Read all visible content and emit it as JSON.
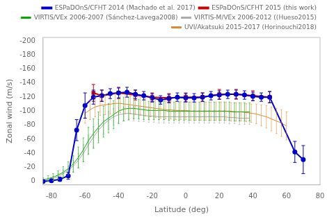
{
  "chart_data": {
    "type": "line",
    "xlabel": "Latitude (deg)",
    "ylabel": "Zonal wind (m/s)",
    "xlim": [
      -85,
      80
    ],
    "ylim": [
      5,
      -205
    ],
    "xticks": [
      -80,
      -60,
      -40,
      -20,
      0,
      20,
      40,
      60,
      80
    ],
    "yticks": [
      -200,
      -180,
      -160,
      -140,
      -120,
      -100,
      -80,
      -60,
      -40,
      -20,
      0
    ],
    "grid": false,
    "legend": "upper right",
    "series": [
      {
        "name": "ESPaDOnS/CFHT 2014 (Machado et al. 2017)",
        "color": "#0000cc",
        "marker": "circle",
        "line_style": "solid",
        "x": [
          -85,
          -80,
          -75,
          -70,
          -65,
          -60,
          -55,
          -50,
          -45,
          -40,
          -35,
          -30,
          -25,
          -20,
          -15,
          -10,
          -5,
          0,
          5,
          10,
          15,
          20,
          25,
          30,
          35,
          40,
          45,
          50,
          65,
          70
        ],
        "values": [
          0,
          -1,
          -3,
          -8,
          -73,
          -108,
          -120,
          -122,
          -125,
          -126,
          -127,
          -124,
          -122,
          -119,
          -116,
          -118,
          -120,
          -119,
          -119,
          -120,
          -122,
          -123,
          -124,
          -124,
          -123,
          -121,
          -120,
          -120,
          -42,
          -31
        ],
        "yerr_low": [
          2,
          2,
          3,
          5,
          15,
          18,
          10,
          8,
          7,
          7,
          7,
          6,
          6,
          6,
          6,
          6,
          6,
          6,
          6,
          6,
          6,
          6,
          6,
          6,
          6,
          6,
          6,
          8,
          15,
          20
        ],
        "yerr_high": [
          2,
          2,
          3,
          5,
          15,
          18,
          10,
          8,
          7,
          7,
          7,
          6,
          6,
          6,
          6,
          6,
          6,
          6,
          6,
          6,
          6,
          6,
          6,
          6,
          6,
          6,
          6,
          8,
          15,
          20
        ]
      },
      {
        "name": "ESPaDOnS/CFHT 2015 (this work)",
        "color": "#cc0000",
        "marker": "square",
        "line_style": "solid",
        "x": [
          -55,
          -50,
          -40,
          -30,
          -20,
          -10,
          0,
          10,
          20,
          30,
          40,
          50
        ],
        "values": [
          -126,
          -122,
          -126,
          -123,
          -120,
          -119,
          -120,
          -120,
          -124,
          -124,
          -122,
          -120
        ],
        "yerr_low": [
          12,
          8,
          8,
          7,
          6,
          6,
          6,
          6,
          7,
          7,
          7,
          8
        ],
        "yerr_high": [
          12,
          8,
          8,
          7,
          6,
          6,
          6,
          6,
          7,
          7,
          7,
          8
        ]
      },
      {
        "name": "VIRTIS/VEx 2006-2007 (Sánchez-Lavega2008)",
        "color": "#00aa00",
        "marker": "none",
        "line_style": "solid",
        "x": [
          -85,
          -82,
          -79,
          -76,
          -73,
          -70,
          -67,
          -64,
          -61,
          -58,
          -55,
          -52,
          -49,
          -46,
          -43,
          -40,
          -37,
          -34,
          -31,
          -28,
          -25,
          -22,
          -19,
          -16,
          -13,
          -10,
          -7,
          -4,
          -1,
          2,
          5,
          8,
          11,
          14,
          17,
          20,
          23,
          26,
          29,
          32,
          35,
          38
        ],
        "values": [
          -2,
          -4,
          -6,
          -9,
          -13,
          -18,
          -25,
          -34,
          -45,
          -58,
          -68,
          -77,
          -85,
          -90,
          -95,
          -100,
          -103,
          -104,
          -104,
          -103,
          -102,
          -101,
          -101,
          -101,
          -101,
          -100,
          -100,
          -100,
          -100,
          -100,
          -100,
          -100,
          -100,
          -100,
          -100,
          -100,
          -100,
          -100,
          -99,
          -99,
          -99,
          -99
        ],
        "yerr": [
          3,
          4,
          5,
          6,
          8,
          10,
          12,
          15,
          17,
          19,
          21,
          22,
          22,
          21,
          20,
          18,
          17,
          16,
          15,
          14,
          14,
          13,
          13,
          13,
          13,
          13,
          13,
          13,
          13,
          13,
          13,
          13,
          13,
          13,
          13,
          13,
          13,
          13,
          13,
          13,
          13,
          13
        ]
      },
      {
        "name": "VIRTIS-M/VEx 2006-2012 ((Hueso2015)",
        "color": "#aaaaaa",
        "marker": "none",
        "line_style": "solid",
        "x": [
          -85,
          -82,
          -79,
          -76,
          -73,
          -70,
          -67,
          -64,
          -61,
          -58,
          -55,
          -52,
          -49,
          -46,
          -43,
          -40,
          -37,
          -34,
          -31,
          -28,
          -25,
          -22,
          -19,
          -16,
          -13,
          -10,
          -7,
          -4,
          -1,
          2,
          5,
          8,
          11,
          14,
          17,
          20,
          23,
          26,
          29,
          32,
          35,
          38
        ],
        "values": [
          -1,
          -2,
          -4,
          -7,
          -11,
          -16,
          -22,
          -30,
          -40,
          -52,
          -63,
          -73,
          -81,
          -87,
          -92,
          -95,
          -96,
          -97,
          -96,
          -95,
          -94,
          -93,
          -93,
          -92,
          -92,
          -92,
          -92,
          -92,
          -92,
          -92,
          -92,
          -92,
          -92,
          -92,
          -92,
          -92,
          -92,
          -91,
          -91,
          -90,
          -90,
          -90
        ],
        "yerr": [
          2,
          2,
          3,
          4,
          5,
          6,
          8,
          10,
          12,
          14,
          15,
          15,
          14,
          13,
          12,
          11,
          10,
          10,
          10,
          10,
          9,
          9,
          9,
          9,
          9,
          9,
          9,
          9,
          9,
          9,
          9,
          9,
          9,
          9,
          9,
          9,
          9,
          9,
          9,
          9,
          9,
          9
        ]
      },
      {
        "name": "UVI/Akatsuki 2015-2017 (Horinouchi2018)",
        "color": "#dd8833",
        "marker": "none",
        "line_style": "solid",
        "x": [
          -60,
          -57,
          -54,
          -51,
          -48,
          -45,
          -42,
          -39,
          -36,
          -33,
          -30,
          -27,
          -24,
          -21,
          -18,
          -15,
          -12,
          -9,
          -6,
          -3,
          0,
          3,
          6,
          9,
          12,
          15,
          18,
          21,
          24,
          27,
          30,
          33,
          36,
          39,
          42,
          45,
          48,
          51,
          54,
          57,
          60
        ],
        "values": [
          -97,
          -102,
          -106,
          -108,
          -109,
          -110,
          -111,
          -111,
          -110,
          -109,
          -108,
          -107,
          -106,
          -105,
          -104,
          -103,
          -102,
          -102,
          -101,
          -101,
          -101,
          -100,
          -100,
          -100,
          -100,
          -100,
          -100,
          -100,
          -100,
          -99,
          -99,
          -99,
          -98,
          -97,
          -96,
          -94,
          -92,
          -89,
          -86,
          -83,
          -79
        ],
        "yerr": [
          14,
          14,
          14,
          14,
          14,
          14,
          14,
          13,
          13,
          13,
          13,
          13,
          13,
          13,
          13,
          13,
          13,
          13,
          13,
          13,
          13,
          13,
          13,
          13,
          13,
          13,
          13,
          13,
          13,
          13,
          13,
          13,
          13,
          13,
          14,
          15,
          16,
          17,
          18,
          19,
          20
        ]
      }
    ]
  }
}
